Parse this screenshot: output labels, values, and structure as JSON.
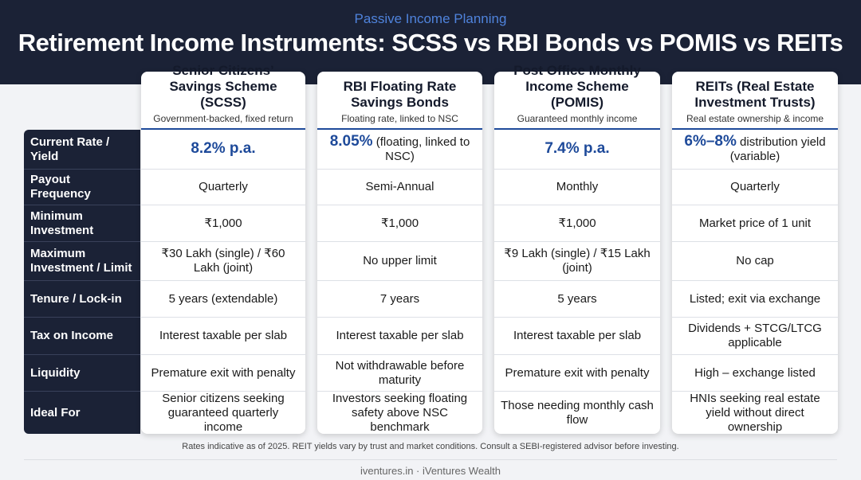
{
  "header": {
    "kicker": "Passive Income Planning",
    "title": "Retirement Income Instruments: SCSS vs RBI Bonds vs POMIS vs REITs"
  },
  "columns": [
    {
      "title": "Senior Citizens’ Savings Scheme (SCSS)",
      "subtitle": "Government-backed, fixed return"
    },
    {
      "title": "RBI Floating Rate Savings Bonds",
      "subtitle": "Floating rate, linked to NSC"
    },
    {
      "title": "Post Office Monthly Income Scheme (POMIS)",
      "subtitle": "Guaranteed monthly income"
    },
    {
      "title": "REITs (Real Estate Investment Trusts)",
      "subtitle": "Real estate ownership & income"
    }
  ],
  "rows": [
    {
      "label": "Current Rate / Yield",
      "cells": [
        {
          "highlight": "8.2% p.a."
        },
        {
          "highlight": "8.05%",
          "rest": "(floating, linked to NSC)"
        },
        {
          "highlight": "7.4% p.a."
        },
        {
          "highlight": "6%–8%",
          "rest": "distribution yield (variable)"
        }
      ]
    },
    {
      "label": "Payout Frequency",
      "cells": [
        "Quarterly",
        "Semi-Annual",
        "Monthly",
        "Quarterly"
      ]
    },
    {
      "label": "Minimum Investment",
      "cells": [
        "₹1,000",
        "₹1,000",
        "₹1,000",
        "Market price of 1 unit"
      ]
    },
    {
      "label": "Maximum Investment / Limit",
      "cells": [
        "₹30 Lakh (single) / ₹60 Lakh (joint)",
        "No upper limit",
        "₹9 Lakh (single) / ₹15 Lakh (joint)",
        "No cap"
      ]
    },
    {
      "label": "Tenure / Lock-in",
      "cells": [
        "5 years (extendable)",
        "7 years",
        "5 years",
        "Listed; exit via exchange"
      ]
    },
    {
      "label": "Tax on Income",
      "cells": [
        "Interest taxable per slab",
        "Interest taxable per slab",
        "Interest taxable per slab",
        "Dividends + STCG/LTCG applicable"
      ]
    },
    {
      "label": "Liquidity",
      "cells": [
        "Premature exit with penalty",
        "Not withdrawable before maturity",
        "Premature exit with penalty",
        "High – exchange listed"
      ]
    },
    {
      "label": "Ideal For",
      "cells": [
        "Senior citizens seeking guaranteed quarterly income",
        "Investors seeking floating safety above NSC benchmark",
        "Those needing monthly cash flow",
        "HNIs seeking real estate yield without direct ownership"
      ]
    }
  ],
  "footnote": "Rates indicative as of 2025. REIT yields vary by trust and market conditions. Consult a SEBI-registered advisor before investing.",
  "footer": "iventures.in · iVentures Wealth"
}
